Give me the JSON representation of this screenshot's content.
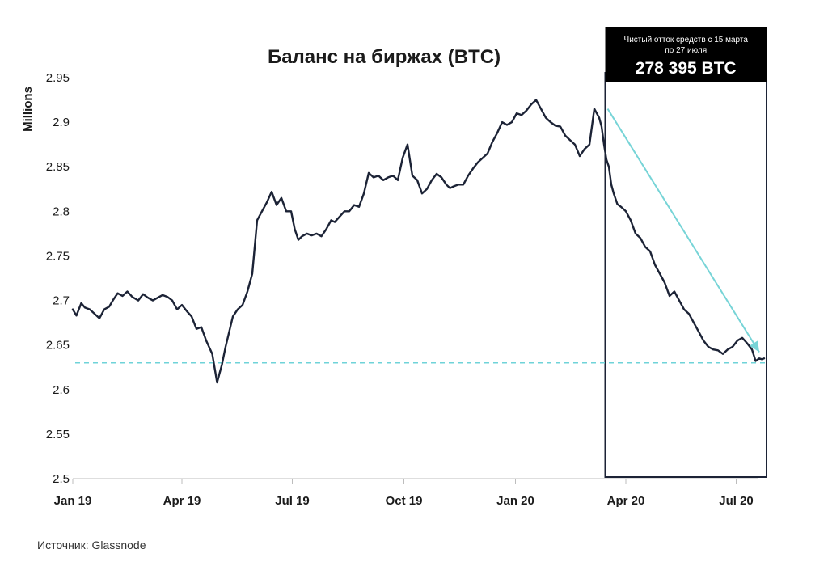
{
  "chart_data": {
    "type": "line",
    "title": "Баланс на биржах (BTC)",
    "ylabel": "Millions",
    "xlabel": "",
    "ylim": [
      2.5,
      2.95
    ],
    "yticks": [
      "2.95",
      "2.9",
      "2.85",
      "2.8",
      "2.75",
      "2.7",
      "2.65",
      "2.6",
      "2.55",
      "2.5"
    ],
    "ytick_values": [
      2.95,
      2.9,
      2.85,
      2.8,
      2.75,
      2.7,
      2.65,
      2.6,
      2.55,
      2.5
    ],
    "xlim_days": [
      0,
      572
    ],
    "xticks": [
      {
        "label": "Jan 19",
        "day": 0
      },
      {
        "label": "Apr 19",
        "day": 90
      },
      {
        "label": "Jul 19",
        "day": 181
      },
      {
        "label": "Oct 19",
        "day": 273
      },
      {
        "label": "Jan 20",
        "day": 365
      },
      {
        "label": "Apr 20",
        "day": 456
      },
      {
        "label": "Jul 20",
        "day": 547
      }
    ],
    "series": [
      {
        "name": "Баланс на биржах",
        "x_days": [
          0,
          3,
          7,
          10,
          14,
          18,
          22,
          26,
          30,
          33,
          37,
          41,
          45,
          49,
          54,
          58,
          62,
          66,
          70,
          74,
          78,
          82,
          86,
          90,
          94,
          98,
          102,
          106,
          110,
          115,
          119,
          121,
          123,
          126,
          129,
          132,
          136,
          140,
          144,
          148,
          152,
          156,
          160,
          164,
          168,
          172,
          176,
          180,
          183,
          186,
          189,
          193,
          197,
          201,
          205,
          209,
          213,
          216,
          220,
          224,
          228,
          232,
          236,
          240,
          244,
          248,
          252,
          256,
          260,
          264,
          268,
          272,
          276,
          280,
          284,
          288,
          292,
          296,
          300,
          304,
          308,
          311,
          314,
          318,
          322,
          326,
          330,
          334,
          338,
          342,
          346,
          350,
          354,
          358,
          362,
          366,
          370,
          374,
          378,
          382,
          386,
          390,
          394,
          398,
          402,
          406,
          410,
          414,
          418,
          422,
          426,
          430,
          434,
          436,
          438,
          440,
          442,
          444,
          446,
          449,
          452,
          456,
          460,
          464,
          468,
          472,
          476,
          480,
          484,
          488,
          492,
          496,
          500,
          504,
          508,
          512,
          516,
          520,
          524,
          528,
          532,
          536,
          540,
          544,
          548,
          552,
          556,
          560,
          563,
          566,
          568,
          570
        ],
        "values": [
          2.69,
          2.683,
          2.697,
          2.692,
          2.69,
          2.685,
          2.68,
          2.69,
          2.693,
          2.7,
          2.708,
          2.705,
          2.71,
          2.704,
          2.7,
          2.707,
          2.703,
          2.7,
          2.703,
          2.706,
          2.704,
          2.7,
          2.69,
          2.695,
          2.688,
          2.682,
          2.668,
          2.67,
          2.655,
          2.64,
          2.608,
          2.618,
          2.628,
          2.648,
          2.665,
          2.682,
          2.69,
          2.695,
          2.71,
          2.73,
          2.79,
          2.8,
          2.81,
          2.822,
          2.807,
          2.815,
          2.8,
          2.8,
          2.78,
          2.768,
          2.772,
          2.775,
          2.773,
          2.775,
          2.772,
          2.78,
          2.79,
          2.788,
          2.794,
          2.8,
          2.8,
          2.807,
          2.805,
          2.82,
          2.843,
          2.838,
          2.84,
          2.835,
          2.838,
          2.84,
          2.835,
          2.86,
          2.875,
          2.84,
          2.835,
          2.82,
          2.825,
          2.835,
          2.842,
          2.838,
          2.83,
          2.826,
          2.828,
          2.83,
          2.83,
          2.84,
          2.848,
          2.855,
          2.86,
          2.865,
          2.878,
          2.888,
          2.9,
          2.897,
          2.9,
          2.91,
          2.908,
          2.913,
          2.92,
          2.925,
          2.915,
          2.905,
          2.9,
          2.896,
          2.895,
          2.885,
          2.88,
          2.875,
          2.862,
          2.87,
          2.875,
          2.915,
          2.905,
          2.895,
          2.875,
          2.858,
          2.85,
          2.83,
          2.82,
          2.808,
          2.805,
          2.8,
          2.79,
          2.775,
          2.77,
          2.76,
          2.755,
          2.74,
          2.73,
          2.72,
          2.705,
          2.71,
          2.7,
          2.69,
          2.685,
          2.675,
          2.665,
          2.655,
          2.648,
          2.645,
          2.644,
          2.64,
          2.645,
          2.648,
          2.655,
          2.658,
          2.652,
          2.645,
          2.632,
          2.635,
          2.634,
          2.635
        ]
      }
    ],
    "reference_line": {
      "value": 2.63,
      "style": "dashed",
      "color": "#6fd3d8"
    },
    "highlight": {
      "from_day": 439,
      "to_day": 572,
      "label_line1": "Чистый отток средств с 15 марта",
      "label_line2": "по 27 июля",
      "label_value": "278 395 BTC"
    },
    "trend_arrow": {
      "from_day": 441,
      "from_value": 2.915,
      "to_day": 566,
      "to_value": 2.642,
      "color": "#77d4d7"
    },
    "colors": {
      "line": "#1c2336",
      "dashed": "#6fd3d8",
      "arrow": "#77d4d7",
      "box": "#1c2336",
      "box_header": "#000000"
    }
  },
  "footer": {
    "source": "Источник: Glassnode"
  }
}
